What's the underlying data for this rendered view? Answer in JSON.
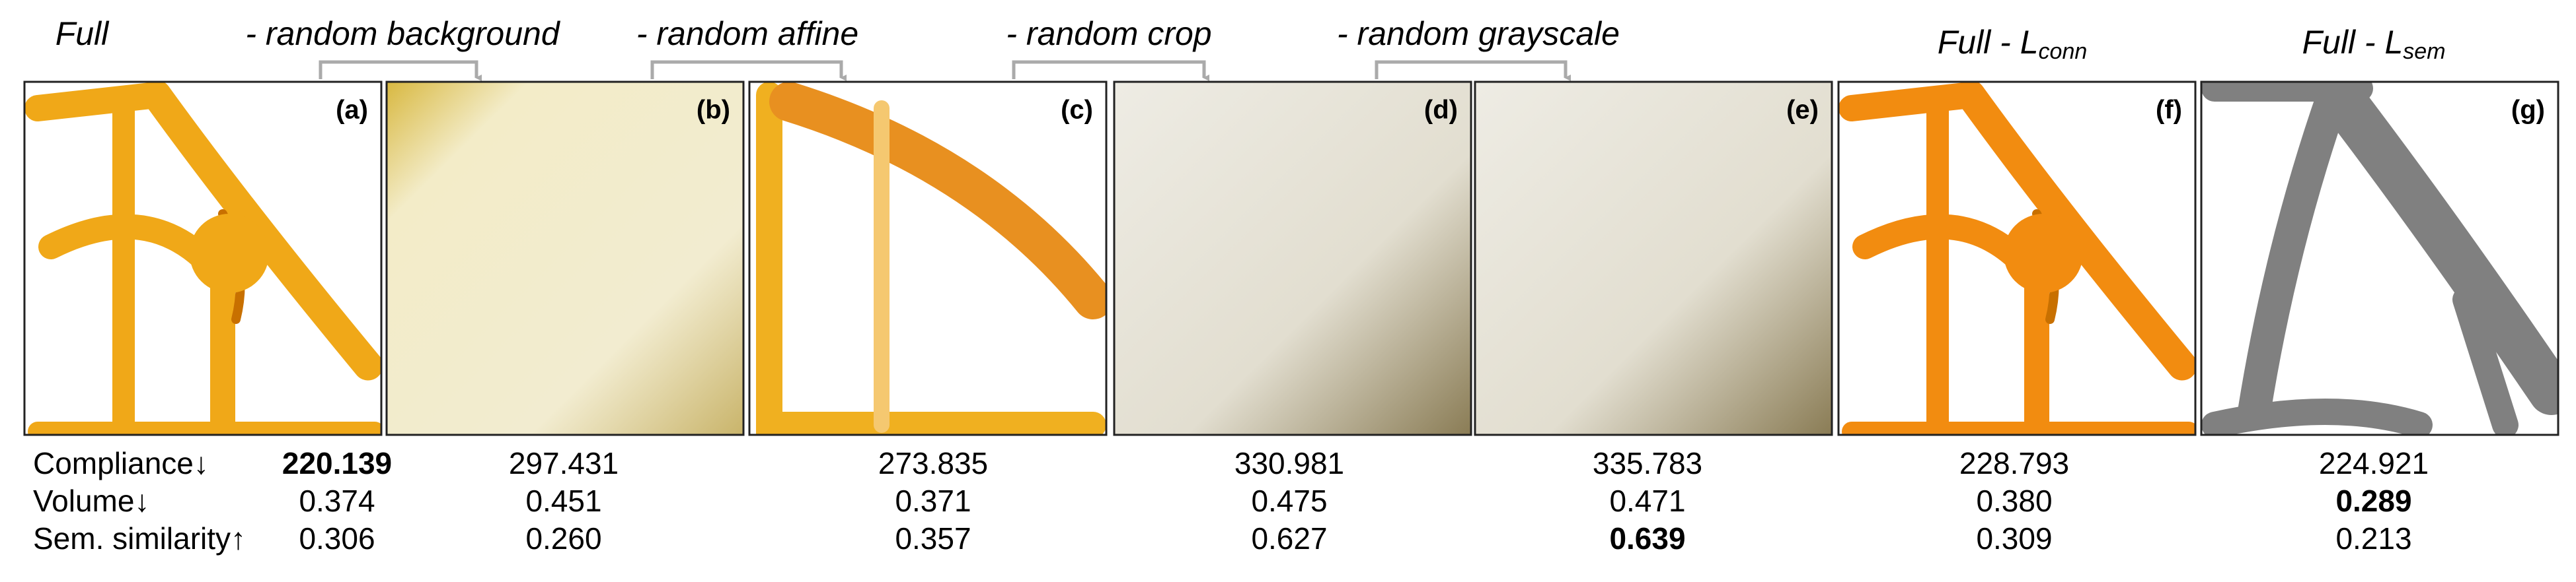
{
  "captions": [
    "Full",
    "- random background",
    "- random affine",
    "- random crop",
    "- random grayscale"
  ],
  "loss_captions": [
    {
      "text": "Full - L",
      "sub": "conn"
    },
    {
      "text": "Full - L",
      "sub": "sem"
    }
  ],
  "panels": [
    "(a)",
    "(b)",
    "(c)",
    "(d)",
    "(e)",
    "(f)",
    "(g)"
  ],
  "table": {
    "rows": [
      {
        "name": "Compliance↓",
        "values": [
          "220.139",
          "297.431",
          "273.835",
          "330.981",
          "335.783",
          "228.793",
          "224.921"
        ]
      },
      {
        "name": "Volume↓",
        "values": [
          "0.374",
          "0.451",
          "0.371",
          "0.475",
          "0.471",
          "0.380",
          "0.289"
        ]
      },
      {
        "name": "Sem. similarity↑",
        "values": [
          "0.306",
          "0.260",
          "0.357",
          "0.627",
          "0.639",
          "0.309",
          "0.213"
        ]
      }
    ]
  }
}
